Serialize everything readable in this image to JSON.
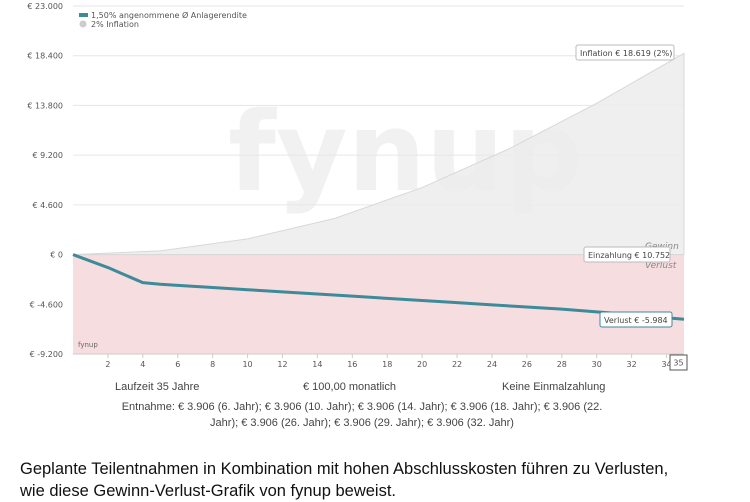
{
  "chart_data": {
    "type": "line",
    "y_ticks": [
      "€ 23.000",
      "€ 18.400",
      "€ 13.800",
      "€ 9.200",
      "€ 4.600",
      "€ 0",
      "€ -4.600",
      "€ -9.200"
    ],
    "ylim": [
      -9200,
      23000
    ],
    "x_ticks": [
      "2",
      "4",
      "6",
      "8",
      "10",
      "12",
      "14",
      "16",
      "18",
      "20",
      "22",
      "24",
      "26",
      "28",
      "30",
      "32",
      "34"
    ],
    "xlim": [
      0,
      35
    ],
    "x_end_badge": "35",
    "series": [
      {
        "name": "1,50% angenommene Ø Anlagerendite",
        "color": "#3d8a99",
        "x": [
          0,
          2,
          4,
          5,
          6,
          8,
          10,
          12,
          14,
          16,
          18,
          20,
          22,
          24,
          26,
          28,
          30,
          32,
          34,
          35
        ],
        "values": [
          0,
          -1200,
          -2600,
          -2750,
          -2850,
          -3050,
          -3250,
          -3450,
          -3650,
          -3850,
          -4050,
          -4250,
          -4450,
          -4650,
          -4850,
          -5050,
          -5300,
          -5550,
          -5850,
          -5984
        ]
      },
      {
        "name": "2% Inflation",
        "color": "#d6d6d6",
        "x": [
          0,
          5,
          10,
          15,
          20,
          25,
          30,
          35
        ],
        "values": [
          0,
          344,
          1450,
          3350,
          6200,
          9800,
          14000,
          18619
        ]
      }
    ],
    "flags": {
      "inflation": "Inflation € 18.619 (2%)",
      "einzahlung": "Einzahlung € 10.752",
      "verlust": "Verlust € -5.984"
    },
    "zone_labels": {
      "gain": "Gewinn",
      "loss": "Verlust"
    },
    "loss_color": "#f6dde0",
    "watermark": "fynup",
    "brand_small": "fynup"
  },
  "info": {
    "laufzeit": "Laufzeit 35 Jahre",
    "monatlich": "€ 100,00 monatlich",
    "einmal": "Keine Einmalzahlung",
    "entnahme_line1": "Entnahme: € 3.906 (6. Jahr); € 3.906 (10. Jahr); € 3.906 (14. Jahr); € 3.906 (18. Jahr); € 3.906 (22.",
    "entnahme_line2": "Jahr); € 3.906 (26. Jahr); € 3.906 (29. Jahr); € 3.906 (32. Jahr)"
  },
  "caption": {
    "line1": "Geplante Teilentnahmen in Kombination mit hohen Abschlusskosten führen zu Verlusten,",
    "line2": "wie diese Gewinn-Verlust-Grafik von fynup beweist."
  }
}
